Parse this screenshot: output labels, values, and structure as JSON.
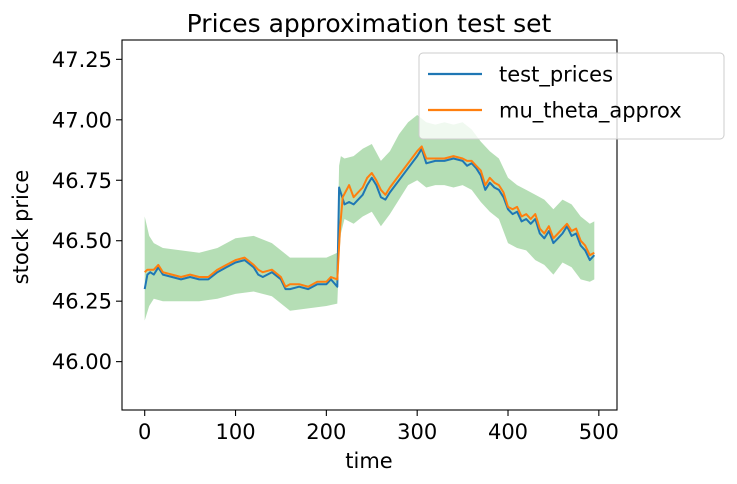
{
  "chart_data": {
    "type": "line",
    "title": "Prices approximation test set",
    "xlabel": "time",
    "ylabel": "stock price",
    "xlim": [
      -25,
      520
    ],
    "ylim": [
      45.8,
      47.33
    ],
    "x_ticks": [
      0,
      100,
      200,
      300,
      400,
      500
    ],
    "y_ticks": [
      46.0,
      46.25,
      46.5,
      46.75,
      47.0,
      47.25
    ],
    "x_tick_labels": [
      "0",
      "100",
      "200",
      "300",
      "400",
      "500"
    ],
    "y_tick_labels": [
      "46.00",
      "46.25",
      "46.50",
      "46.75",
      "47.00",
      "47.25"
    ],
    "grid": false,
    "legend_position": "upper-right",
    "band": {
      "color": "#2ca02c",
      "opacity": 0.35,
      "x": [
        0,
        5,
        10,
        20,
        40,
        60,
        80,
        100,
        120,
        140,
        160,
        180,
        200,
        212,
        214,
        216,
        220,
        230,
        240,
        250,
        260,
        270,
        280,
        290,
        300,
        310,
        320,
        330,
        340,
        350,
        360,
        370,
        380,
        390,
        400,
        410,
        420,
        430,
        440,
        450,
        460,
        470,
        480,
        490,
        495
      ],
      "lower": [
        46.17,
        46.23,
        46.26,
        46.25,
        46.25,
        46.25,
        46.26,
        46.28,
        46.29,
        46.27,
        46.21,
        46.22,
        46.23,
        46.24,
        46.43,
        46.53,
        46.59,
        46.57,
        46.6,
        46.62,
        46.56,
        46.61,
        46.67,
        46.73,
        46.75,
        46.72,
        46.73,
        46.73,
        46.72,
        46.73,
        46.71,
        46.66,
        46.62,
        46.59,
        46.49,
        46.47,
        46.46,
        46.42,
        46.4,
        46.36,
        46.41,
        46.39,
        46.34,
        46.33,
        46.34
      ],
      "upper": [
        46.6,
        46.52,
        46.49,
        46.47,
        46.46,
        46.45,
        46.47,
        46.51,
        46.52,
        46.49,
        46.43,
        46.43,
        46.43,
        46.45,
        46.81,
        46.85,
        46.84,
        46.85,
        46.88,
        46.9,
        46.83,
        46.87,
        46.94,
        46.99,
        47.02,
        46.99,
        46.98,
        46.99,
        46.98,
        46.99,
        46.96,
        46.91,
        46.87,
        46.84,
        46.76,
        46.73,
        46.71,
        46.69,
        46.67,
        46.63,
        46.67,
        46.65,
        46.6,
        46.57,
        46.58
      ]
    },
    "series": [
      {
        "name": "test_prices",
        "color": "#1f77b4",
        "x": [
          0,
          3,
          6,
          10,
          15,
          20,
          30,
          40,
          50,
          60,
          70,
          80,
          90,
          95,
          100,
          110,
          120,
          125,
          130,
          140,
          150,
          155,
          160,
          170,
          180,
          190,
          200,
          205,
          212,
          214,
          220,
          225,
          230,
          240,
          245,
          250,
          255,
          260,
          265,
          270,
          280,
          290,
          300,
          305,
          310,
          320,
          330,
          340,
          350,
          355,
          360,
          365,
          370,
          375,
          380,
          385,
          390,
          395,
          400,
          405,
          410,
          415,
          420,
          425,
          430,
          435,
          440,
          445,
          450,
          455,
          460,
          465,
          470,
          475,
          480,
          485,
          490,
          495
        ],
        "y": [
          46.3,
          46.36,
          46.37,
          46.36,
          46.39,
          46.36,
          46.35,
          46.34,
          46.35,
          46.34,
          46.34,
          46.37,
          46.39,
          46.4,
          46.41,
          46.42,
          46.39,
          46.36,
          46.35,
          46.37,
          46.34,
          46.3,
          46.3,
          46.31,
          46.3,
          46.32,
          46.32,
          46.34,
          46.31,
          46.72,
          46.65,
          46.66,
          46.65,
          46.69,
          46.73,
          46.76,
          46.73,
          46.68,
          46.67,
          46.7,
          46.75,
          46.8,
          46.85,
          46.88,
          46.82,
          46.83,
          46.83,
          46.84,
          46.83,
          46.81,
          46.82,
          46.8,
          46.77,
          46.71,
          46.74,
          46.72,
          46.71,
          46.68,
          46.63,
          46.61,
          46.62,
          46.58,
          46.59,
          46.57,
          46.59,
          46.53,
          46.51,
          46.54,
          46.49,
          46.51,
          46.53,
          46.56,
          46.52,
          46.53,
          46.48,
          46.46,
          46.42,
          46.44
        ]
      },
      {
        "name": "mu_theta_approx",
        "color": "#ff7f0e",
        "x": [
          0,
          3,
          6,
          10,
          15,
          20,
          30,
          40,
          50,
          60,
          70,
          80,
          90,
          95,
          100,
          110,
          120,
          125,
          130,
          140,
          150,
          155,
          160,
          170,
          180,
          190,
          200,
          205,
          212,
          215,
          218,
          225,
          230,
          240,
          245,
          250,
          255,
          260,
          265,
          270,
          280,
          290,
          300,
          305,
          310,
          320,
          330,
          340,
          350,
          355,
          360,
          365,
          370,
          375,
          380,
          385,
          390,
          395,
          400,
          405,
          410,
          415,
          420,
          425,
          430,
          435,
          440,
          445,
          450,
          455,
          460,
          465,
          470,
          475,
          480,
          485,
          490,
          495
        ],
        "y": [
          46.37,
          46.38,
          46.38,
          46.38,
          46.4,
          46.37,
          46.36,
          46.35,
          46.36,
          46.35,
          46.35,
          46.38,
          46.4,
          46.41,
          46.42,
          46.43,
          46.4,
          46.38,
          46.37,
          46.38,
          46.35,
          46.31,
          46.32,
          46.32,
          46.31,
          46.33,
          46.33,
          46.35,
          46.34,
          46.55,
          46.68,
          46.73,
          46.68,
          46.72,
          46.76,
          46.78,
          46.75,
          46.71,
          46.69,
          46.72,
          46.77,
          46.82,
          46.87,
          46.89,
          46.84,
          46.84,
          46.84,
          46.85,
          46.84,
          46.83,
          46.83,
          46.81,
          46.79,
          46.73,
          46.76,
          46.74,
          46.73,
          46.7,
          46.64,
          46.63,
          46.64,
          46.6,
          46.61,
          46.59,
          46.61,
          46.55,
          46.53,
          46.56,
          46.51,
          46.53,
          46.55,
          46.57,
          46.54,
          46.55,
          46.5,
          46.48,
          46.44,
          46.45
        ]
      }
    ]
  }
}
